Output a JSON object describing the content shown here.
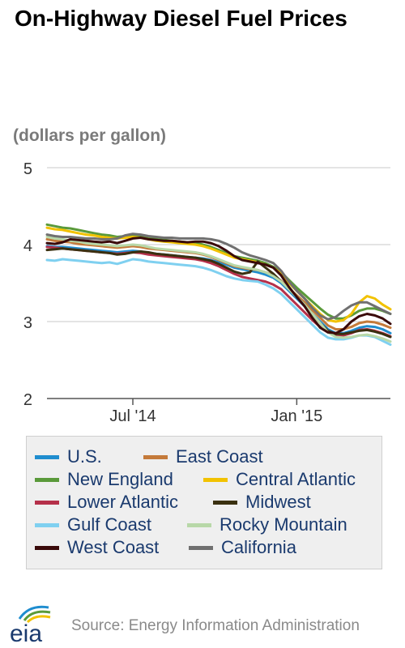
{
  "header": {
    "title": "On-Highway Diesel Fuel Prices",
    "unit": "(dollars per gallon)"
  },
  "colors": {
    "U.S.": "#1f8dcf",
    "East Coast": "#c47a3a",
    "New England": "#5a9a3a",
    "Central Atlantic": "#f2c200",
    "Lower Atlantic": "#b5304a",
    "Midwest": "#3a3010",
    "Gulf Coast": "#7fd0f0",
    "Rocky Mountain": "#b8d8a8",
    "West Coast": "#3a0a0a",
    "California": "#707070"
  },
  "legend": {
    "rows": [
      [
        "U.S.",
        "East Coast"
      ],
      [
        "New England",
        "Central Atlantic"
      ],
      [
        "Lower Atlantic",
        "Midwest"
      ],
      [
        "Gulf Coast",
        "Rocky Mountain"
      ],
      [
        "West Coast",
        "California"
      ]
    ]
  },
  "footer": {
    "logo_text": "eia",
    "source": "Source: Energy Information Administration"
  },
  "chart_data": {
    "type": "line",
    "title": "On-Highway Diesel Fuel Prices",
    "ylabel": "(dollars per gallon)",
    "xlabel": "",
    "ylim": [
      2,
      5
    ],
    "yticks": [
      "2",
      "3",
      "4",
      "5"
    ],
    "xticks": [
      {
        "label": "Jul '14",
        "index": 11
      },
      {
        "label": "Jan '15",
        "index": 32
      }
    ],
    "grid": true,
    "legend_position": "bottom",
    "x_index_range": [
      0,
      44
    ],
    "series": [
      {
        "name": "U.S.",
        "values": [
          3.98,
          3.97,
          3.97,
          3.96,
          3.95,
          3.94,
          3.93,
          3.92,
          3.91,
          3.9,
          3.91,
          3.92,
          3.91,
          3.89,
          3.88,
          3.87,
          3.86,
          3.85,
          3.84,
          3.83,
          3.82,
          3.8,
          3.77,
          3.74,
          3.7,
          3.68,
          3.66,
          3.64,
          3.61,
          3.57,
          3.5,
          3.4,
          3.3,
          3.2,
          3.1,
          3.0,
          2.9,
          2.85,
          2.85,
          2.88,
          2.92,
          2.94,
          2.93,
          2.9,
          2.85
        ]
      },
      {
        "name": "East Coast",
        "values": [
          4.07,
          4.05,
          4.04,
          4.03,
          4.01,
          4.0,
          3.99,
          3.98,
          3.97,
          3.96,
          3.97,
          3.98,
          3.97,
          3.95,
          3.94,
          3.93,
          3.92,
          3.91,
          3.9,
          3.89,
          3.87,
          3.84,
          3.8,
          3.76,
          3.72,
          3.7,
          3.68,
          3.67,
          3.64,
          3.6,
          3.53,
          3.43,
          3.34,
          3.25,
          3.15,
          3.05,
          2.95,
          2.9,
          2.9,
          2.93,
          2.98,
          3.0,
          2.99,
          2.96,
          2.92
        ]
      },
      {
        "name": "New England",
        "values": [
          4.26,
          4.24,
          4.22,
          4.21,
          4.19,
          4.17,
          4.15,
          4.13,
          4.12,
          4.1,
          4.11,
          4.12,
          4.11,
          4.09,
          4.07,
          4.06,
          4.05,
          4.04,
          4.03,
          4.02,
          4.0,
          3.97,
          3.93,
          3.89,
          3.85,
          3.83,
          3.81,
          3.79,
          3.76,
          3.71,
          3.64,
          3.54,
          3.44,
          3.35,
          3.26,
          3.17,
          3.09,
          3.04,
          3.04,
          3.08,
          3.14,
          3.17,
          3.17,
          3.14,
          3.1
        ]
      },
      {
        "name": "Central Atlantic",
        "values": [
          4.22,
          4.2,
          4.19,
          4.17,
          4.15,
          4.13,
          4.12,
          4.1,
          4.09,
          4.08,
          4.09,
          4.1,
          4.09,
          4.07,
          4.05,
          4.04,
          4.03,
          4.02,
          4.01,
          4.0,
          3.98,
          3.95,
          3.91,
          3.87,
          3.83,
          3.81,
          3.79,
          3.77,
          3.74,
          3.7,
          3.62,
          3.5,
          3.4,
          3.3,
          3.2,
          3.1,
          3.02,
          3.0,
          3.02,
          3.1,
          3.25,
          3.33,
          3.3,
          3.22,
          3.16
        ]
      },
      {
        "name": "Lower Atlantic",
        "values": [
          3.97,
          3.96,
          3.95,
          3.94,
          3.93,
          3.92,
          3.91,
          3.9,
          3.89,
          3.88,
          3.89,
          3.9,
          3.89,
          3.87,
          3.86,
          3.85,
          3.84,
          3.83,
          3.82,
          3.81,
          3.79,
          3.76,
          3.72,
          3.67,
          3.62,
          3.58,
          3.56,
          3.54,
          3.52,
          3.48,
          3.42,
          3.32,
          3.22,
          3.12,
          3.02,
          2.93,
          2.86,
          2.82,
          2.82,
          2.85,
          2.89,
          2.9,
          2.88,
          2.85,
          2.81
        ]
      },
      {
        "name": "Midwest",
        "values": [
          3.93,
          3.94,
          3.95,
          3.94,
          3.93,
          3.92,
          3.91,
          3.9,
          3.89,
          3.87,
          3.88,
          3.9,
          3.91,
          3.9,
          3.88,
          3.87,
          3.86,
          3.85,
          3.84,
          3.83,
          3.81,
          3.79,
          3.75,
          3.7,
          3.65,
          3.62,
          3.64,
          3.78,
          3.7,
          3.62,
          3.52,
          3.42,
          3.32,
          3.22,
          3.1,
          2.98,
          2.88,
          2.84,
          2.84,
          2.86,
          2.88,
          2.89,
          2.87,
          2.84,
          2.8
        ]
      },
      {
        "name": "Gulf Coast",
        "values": [
          3.8,
          3.79,
          3.81,
          3.8,
          3.79,
          3.78,
          3.77,
          3.76,
          3.77,
          3.75,
          3.78,
          3.81,
          3.8,
          3.78,
          3.77,
          3.76,
          3.75,
          3.74,
          3.73,
          3.72,
          3.7,
          3.67,
          3.63,
          3.59,
          3.56,
          3.54,
          3.53,
          3.52,
          3.48,
          3.43,
          3.36,
          3.26,
          3.16,
          3.06,
          2.96,
          2.86,
          2.79,
          2.77,
          2.77,
          2.79,
          2.82,
          2.82,
          2.8,
          2.75,
          2.7
        ]
      },
      {
        "name": "Rocky Mountain",
        "values": [
          4.1,
          4.08,
          4.07,
          4.05,
          4.04,
          4.02,
          4.01,
          4.0,
          3.99,
          3.98,
          3.99,
          4.0,
          3.99,
          3.97,
          3.95,
          3.94,
          3.93,
          3.92,
          3.91,
          3.9,
          3.88,
          3.85,
          3.81,
          3.77,
          3.73,
          3.71,
          3.69,
          3.67,
          3.64,
          3.59,
          3.52,
          3.42,
          3.32,
          3.22,
          3.1,
          2.98,
          2.86,
          2.8,
          2.79,
          2.8,
          2.82,
          2.83,
          2.81,
          2.78,
          2.74
        ]
      },
      {
        "name": "West Coast",
        "values": [
          4.02,
          4.01,
          4.03,
          4.07,
          4.06,
          4.05,
          4.04,
          4.03,
          4.04,
          4.02,
          4.05,
          4.08,
          4.09,
          4.07,
          4.06,
          4.05,
          4.05,
          4.04,
          4.03,
          4.04,
          4.04,
          4.02,
          3.98,
          3.92,
          3.85,
          3.8,
          3.78,
          3.76,
          3.74,
          3.7,
          3.6,
          3.45,
          3.32,
          3.2,
          3.05,
          2.92,
          2.86,
          2.85,
          2.9,
          3.0,
          3.07,
          3.1,
          3.08,
          3.04,
          2.97
        ]
      },
      {
        "name": "California",
        "values": [
          4.13,
          4.11,
          4.1,
          4.1,
          4.09,
          4.08,
          4.08,
          4.07,
          4.07,
          4.08,
          4.12,
          4.14,
          4.13,
          4.11,
          4.1,
          4.09,
          4.09,
          4.08,
          4.08,
          4.08,
          4.08,
          4.07,
          4.05,
          4.01,
          3.96,
          3.9,
          3.86,
          3.83,
          3.8,
          3.76,
          3.66,
          3.52,
          3.4,
          3.3,
          3.18,
          3.08,
          3.03,
          3.06,
          3.14,
          3.21,
          3.25,
          3.25,
          3.2,
          3.15,
          3.1
        ]
      }
    ]
  }
}
